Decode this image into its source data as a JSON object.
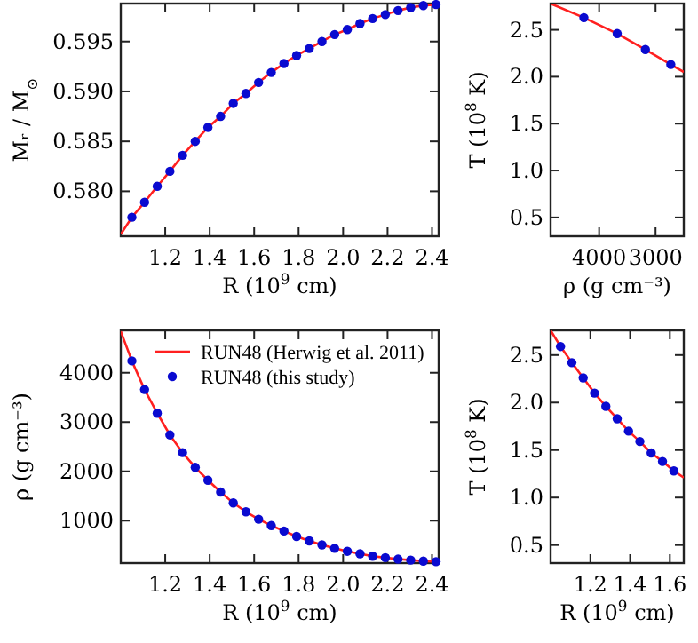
{
  "chart_data": [
    {
      "type": "line",
      "xlabel": "R (10$^{9}$ cm)",
      "ylabel": "Mᵣ / M$_{⊙}$",
      "xlim": [
        1.0,
        2.43
      ],
      "ylim": [
        0.5755,
        0.5988
      ],
      "xticks": [
        {
          "value": 1.2,
          "label": "1.2"
        },
        {
          "value": 1.4,
          "label": "1.4"
        },
        {
          "value": 1.6,
          "label": "1.6"
        },
        {
          "value": 1.8,
          "label": "1.8"
        },
        {
          "value": 2.0,
          "label": "2.0"
        },
        {
          "value": 2.2,
          "label": "2.2"
        },
        {
          "value": 2.4,
          "label": "2.4"
        }
      ],
      "yticks": [
        {
          "value": 0.58,
          "label": "0.580"
        },
        0.585,
        {
          "value": 0.59,
          "label": "0.590"
        },
        0.595
      ],
      "series": [
        {
          "color": "#ff2020",
          "line_style": "solid",
          "x": [
            1.0,
            1.05,
            1.107,
            1.164,
            1.221,
            1.278,
            1.335,
            1.392,
            1.449,
            1.506,
            1.563,
            1.62,
            1.677,
            1.734,
            1.791,
            1.848,
            1.905,
            1.962,
            2.019,
            2.076,
            2.133,
            2.19,
            2.247,
            2.304,
            2.361,
            2.418,
            2.43
          ],
          "values": [
            0.5757,
            0.5774,
            0.5789,
            0.5805,
            0.582,
            0.5836,
            0.585,
            0.5864,
            0.5875,
            0.5888,
            0.5898,
            0.5909,
            0.5919,
            0.5928,
            0.5936,
            0.5943,
            0.595,
            0.5957,
            0.5962,
            0.5968,
            0.5973,
            0.5977,
            0.5981,
            0.5984,
            0.5986,
            0.5987,
            0.5987
          ]
        },
        {
          "type": "scatter",
          "color": "#0a0ad0",
          "marker": "circle",
          "x": [
            1.05,
            1.107,
            1.164,
            1.221,
            1.278,
            1.335,
            1.392,
            1.449,
            1.506,
            1.563,
            1.62,
            1.677,
            1.734,
            1.791,
            1.848,
            1.905,
            1.962,
            2.019,
            2.076,
            2.133,
            2.19,
            2.247,
            2.304,
            2.361,
            2.418
          ],
          "values": [
            0.5774,
            0.5789,
            0.5805,
            0.582,
            0.5836,
            0.585,
            0.5864,
            0.5875,
            0.5888,
            0.5898,
            0.5909,
            0.5919,
            0.5928,
            0.5936,
            0.5943,
            0.595,
            0.5957,
            0.5962,
            0.5968,
            0.5973,
            0.5977,
            0.5981,
            0.5984,
            0.5986,
            0.5987
          ]
        }
      ]
    },
    {
      "type": "line",
      "xlabel": "ρ (g cm⁻³)",
      "ylabel": "T (10$^{8}$ K)",
      "xlim": [
        4860,
        2500
      ],
      "ylim": [
        0.3,
        2.78
      ],
      "xticks": [
        4000,
        3000
      ],
      "yticks": [
        {
          "value": 0.5,
          "label": "0.5"
        },
        {
          "value": 1.0,
          "label": "1.0"
        },
        {
          "value": 1.5,
          "label": "1.5"
        },
        {
          "value": 2.0,
          "label": "2.0"
        },
        {
          "value": 2.5,
          "label": "2.5"
        }
      ],
      "series": [
        {
          "color": "#ff2020",
          "line_style": "solid",
          "x": [
            4860,
            4270,
            3680,
            3180,
            2730,
            2500
          ],
          "values": [
            2.78,
            2.63,
            2.46,
            2.29,
            2.13,
            2.05
          ]
        },
        {
          "type": "scatter",
          "color": "#0a0ad0",
          "marker": "circle",
          "x": [
            4270,
            3680,
            3180,
            2730
          ],
          "values": [
            2.63,
            2.46,
            2.29,
            2.13
          ]
        }
      ]
    },
    {
      "type": "line",
      "xlabel": "R (10$^{9}$ cm)",
      "ylabel": "ρ (g cm⁻³)",
      "xlim": [
        1.0,
        2.43
      ],
      "ylim": [
        140,
        4860
      ],
      "legend": "top right",
      "xticks": [
        {
          "value": 1.2,
          "label": "1.2"
        },
        {
          "value": 1.4,
          "label": "1.4"
        },
        {
          "value": 1.6,
          "label": "1.6"
        },
        {
          "value": 1.8,
          "label": "1.8"
        },
        {
          "value": 2.0,
          "label": "2.0"
        },
        {
          "value": 2.2,
          "label": "2.2"
        },
        {
          "value": 2.4,
          "label": "2.4"
        }
      ],
      "yticks": [
        1000,
        2000,
        3000,
        4000
      ],
      "series": [
        {
          "name": "RUN48 (Herwig et al. 2011)",
          "color": "#ff2020",
          "line_style": "solid",
          "x": [
            1.0,
            1.05,
            1.107,
            1.164,
            1.221,
            1.278,
            1.335,
            1.392,
            1.449,
            1.506,
            1.563,
            1.62,
            1.677,
            1.734,
            1.791,
            1.848,
            1.905,
            1.962,
            2.019,
            2.076,
            2.133,
            2.19,
            2.247,
            2.304,
            2.361,
            2.418,
            2.43
          ],
          "values": [
            4840,
            4240,
            3660,
            3180,
            2740,
            2380,
            2080,
            1820,
            1580,
            1360,
            1180,
            1030,
            900,
            790,
            680,
            590,
            510,
            440,
            380,
            330,
            280,
            250,
            220,
            200,
            180,
            170,
            170
          ]
        },
        {
          "type": "scatter",
          "name": "RUN48 (this study)",
          "color": "#0a0ad0",
          "marker": "circle",
          "x": [
            1.05,
            1.107,
            1.164,
            1.221,
            1.278,
            1.335,
            1.392,
            1.449,
            1.506,
            1.563,
            1.62,
            1.677,
            1.734,
            1.791,
            1.848,
            1.905,
            1.962,
            2.019,
            2.076,
            2.133,
            2.19,
            2.247,
            2.304,
            2.361,
            2.418
          ],
          "values": [
            4240,
            3660,
            3180,
            2740,
            2380,
            2080,
            1820,
            1580,
            1360,
            1180,
            1030,
            900,
            790,
            680,
            590,
            510,
            440,
            380,
            330,
            280,
            250,
            220,
            200,
            180,
            170
          ]
        }
      ]
    },
    {
      "type": "line",
      "xlabel": "R (10$^{9}$ cm)",
      "ylabel": "T (10$^{8}$ K)",
      "xlim": [
        1.0,
        1.67
      ],
      "ylim": [
        0.31,
        2.76
      ],
      "xticks": [
        {
          "value": 1.2,
          "label": "1.2"
        },
        {
          "value": 1.4,
          "label": "1.4"
        },
        {
          "value": 1.6,
          "label": "1.6"
        }
      ],
      "yticks": [
        {
          "value": 0.5,
          "label": "0.5"
        },
        {
          "value": 1.0,
          "label": "1.0"
        },
        {
          "value": 1.5,
          "label": "1.5"
        },
        {
          "value": 2.0,
          "label": "2.0"
        },
        {
          "value": 2.5,
          "label": "2.5"
        }
      ],
      "series": [
        {
          "color": "#ff2020",
          "line_style": "solid",
          "x": [
            1.0,
            1.05,
            1.107,
            1.164,
            1.221,
            1.278,
            1.335,
            1.392,
            1.449,
            1.506,
            1.563,
            1.62,
            1.67
          ],
          "values": [
            2.76,
            2.59,
            2.42,
            2.26,
            2.1,
            1.96,
            1.83,
            1.7,
            1.59,
            1.47,
            1.38,
            1.28,
            1.21
          ]
        },
        {
          "type": "scatter",
          "color": "#0a0ad0",
          "marker": "circle",
          "x": [
            1.05,
            1.107,
            1.164,
            1.221,
            1.278,
            1.335,
            1.392,
            1.449,
            1.506,
            1.563,
            1.62
          ],
          "values": [
            2.59,
            2.42,
            2.26,
            2.1,
            1.96,
            1.83,
            1.7,
            1.59,
            1.47,
            1.38,
            1.28
          ]
        }
      ]
    }
  ]
}
